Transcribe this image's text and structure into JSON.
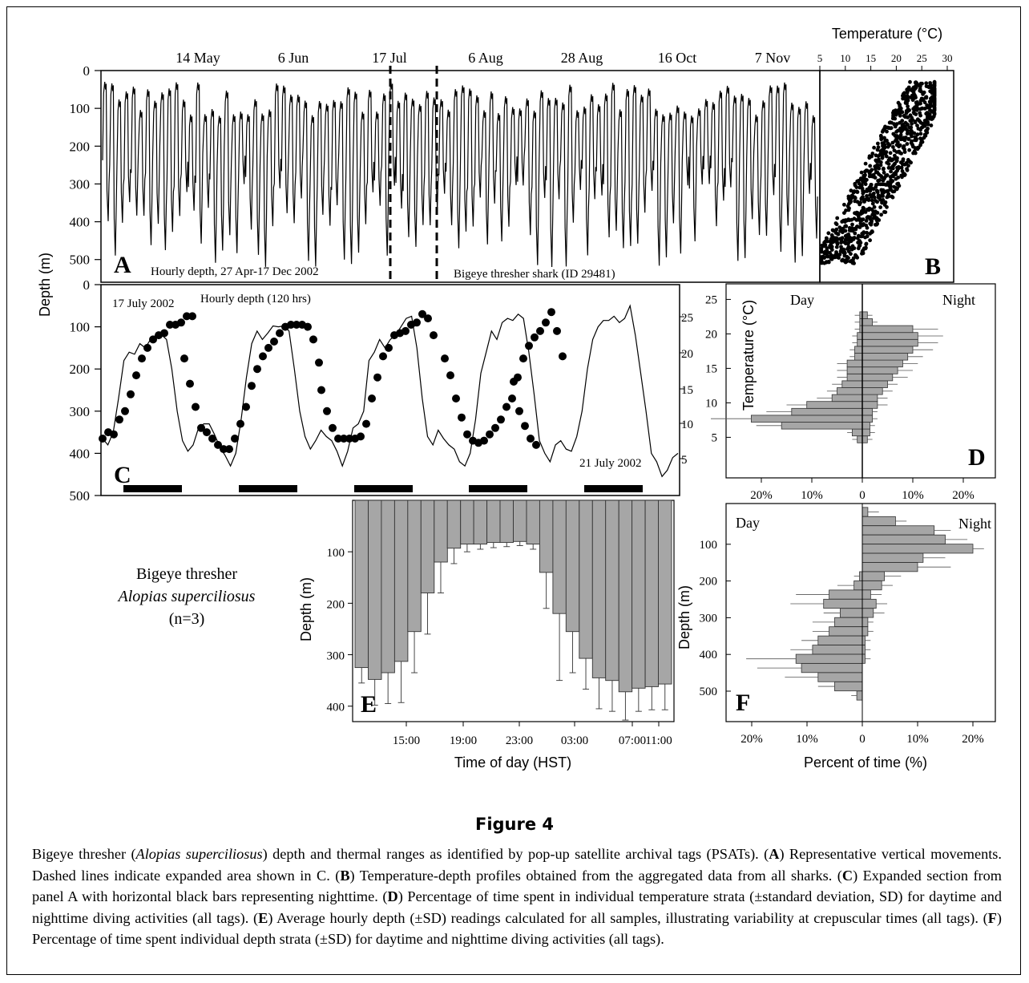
{
  "figure": {
    "title": "Figure 4",
    "caption_html": "Bigeye thresher (<i>Alopias superciliosus</i>) depth and thermal ranges as identified by pop-up satellite archival tags (PSATs). (<b>A</b>) Representative vertical movements. Dashed lines indicate expanded area shown in C. (<b>B</b>) Temperature-depth profiles obtained from the aggregated data from all sharks. (<b>C</b>) Expanded section from panel A with horizontal black bars representing nighttime. (<b>D</b>) Percentage of time spent in individual temperature strata (±standard deviation, SD) for daytime and nighttime diving activities (all tags). (<b>E</b>) Average hourly depth (±SD) readings calculated for all samples, illustrating variability at crepuscular times (all tags). (<b>F</b>) Percentage of time spent individual depth strata (±SD) for daytime and nighttime diving activities (all tags).",
    "species_label": {
      "common": "Bigeye thresher",
      "scientific": "Alopias superciliosus",
      "n": "(n=3)"
    },
    "shared_ylabel": "Depth (m)"
  },
  "chart_data": [
    {
      "panel": "A",
      "type": "line",
      "x_tick_labels": [
        "14 May",
        "6 Jun",
        "17 Jul",
        "6 Aug",
        "28 Aug",
        "16 Oct",
        "7 Nov"
      ],
      "y_ticks": [
        0,
        100,
        200,
        300,
        400,
        500
      ],
      "ylim": [
        0,
        560
      ],
      "y_inverted": true,
      "annotations": [
        "Hourly depth, 27 Apr-17 Dec 2002",
        "Bigeye thresher shark (ID 29481)"
      ],
      "dashed_markers": [
        "17 Jul",
        "21 Jul"
      ],
      "series": [
        {
          "pattern": "diel vertical migration",
          "night_depth_range": [
            30,
            120
          ],
          "day_depth_range": [
            300,
            520
          ],
          "cycles": 100
        }
      ]
    },
    {
      "panel": "B",
      "type": "scatter",
      "title": "Temperature (°C)",
      "xlim": [
        5,
        30
      ],
      "x_ticks": [
        5,
        10,
        15,
        20,
        25,
        30
      ],
      "ylim": [
        0,
        560
      ],
      "y_inverted": true,
      "trend": {
        "shallow": {
          "temperature": [
            22,
            27
          ],
          "depth": [
            30,
            150
          ]
        },
        "deep": {
          "temperature": [
            7,
            12
          ],
          "depth": [
            350,
            510
          ]
        }
      },
      "n_points": 900
    },
    {
      "panel": "C",
      "type": "line",
      "y_ticks": [
        0,
        100,
        200,
        300,
        400,
        500
      ],
      "ylim": [
        0,
        500
      ],
      "y_inverted": true,
      "right_ticks": [
        5,
        10,
        15,
        20,
        25
      ],
      "annotations": [
        "17 July 2002",
        "Hourly depth (120 hrs)",
        "21 July 2002"
      ],
      "depth_line": [
        365,
        380,
        350,
        270,
        180,
        160,
        165,
        140,
        150,
        130,
        120,
        118,
        130,
        200,
        300,
        370,
        395,
        380,
        340,
        330,
        330,
        355,
        385,
        405,
        430,
        400,
        320,
        220,
        140,
        110,
        130,
        115,
        98,
        100,
        98,
        110,
        200,
        300,
        360,
        390,
        370,
        345,
        360,
        370,
        395,
        430,
        395,
        340,
        330,
        300,
        180,
        160,
        130,
        150,
        130,
        120,
        100,
        80,
        75,
        150,
        270,
        360,
        380,
        345,
        365,
        380,
        390,
        420,
        430,
        400,
        320,
        210,
        160,
        110,
        130,
        90,
        80,
        85,
        70,
        80,
        160,
        260,
        370,
        400,
        420,
        380,
        370,
        390,
        395,
        360,
        300,
        200,
        130,
        100,
        85,
        85,
        75,
        90,
        80,
        50,
        120,
        210,
        300,
        400,
        420,
        455,
        440,
        410,
        400
      ],
      "temperature_dots": {
        "cycle1": [
          365,
          350,
          355,
          320,
          300,
          260,
          215,
          175,
          150,
          130,
          120,
          115,
          95,
          95,
          90,
          75,
          75
        ],
        "cycle2": [
          175,
          235,
          290,
          340,
          350,
          365,
          380,
          390,
          390,
          365,
          330,
          290,
          240,
          200,
          170,
          150,
          135,
          115,
          100,
          95,
          95,
          95,
          100,
          130,
          185
        ],
        "cycle3": [
          250,
          300,
          340,
          365,
          365,
          365,
          365,
          360,
          330,
          270,
          220,
          170,
          150,
          120,
          115,
          110,
          95,
          90,
          70,
          80,
          120
        ],
        "cycle4": [
          175,
          215,
          270,
          315,
          355,
          370,
          375,
          370,
          355,
          340,
          320,
          290,
          270,
          220,
          175,
          145,
          125,
          110,
          90,
          65,
          110,
          170
        ],
        "cycle5": [
          230,
          300,
          335,
          365,
          380
        ]
      },
      "night_bars": 5
    },
    {
      "panel": "D",
      "type": "bar",
      "orientation": "horizontal",
      "ylabel": "Temperature (°C)",
      "y_ticks": [
        5,
        10,
        15,
        20,
        25
      ],
      "x_tick_labels": [
        "20%",
        "10%",
        "0",
        "10%",
        "20%"
      ],
      "labels": [
        "Day",
        "Night"
      ],
      "temperature_bins": [
        5,
        6,
        7,
        8,
        9,
        10,
        11,
        12,
        13,
        14,
        15,
        16,
        17,
        18,
        19,
        20,
        21,
        22,
        23
      ],
      "day_percent": [
        1,
        2,
        16,
        22,
        14,
        11,
        6,
        5,
        4,
        3,
        3,
        3,
        1.5,
        1.5,
        1,
        1,
        0.5,
        0.5,
        0.5
      ],
      "night_percent": [
        1,
        1.5,
        1.5,
        2,
        2,
        3,
        3,
        4,
        5,
        6,
        7,
        8,
        9,
        10,
        11,
        11,
        10,
        2,
        1
      ],
      "day_sd": [
        1,
        1,
        5,
        8,
        5,
        4,
        3,
        2,
        2,
        2,
        2,
        2,
        1,
        1,
        1,
        1,
        1,
        1,
        1
      ],
      "night_sd": [
        1,
        1,
        1,
        1,
        1,
        2,
        2,
        2,
        2,
        3,
        3,
        3,
        3,
        4,
        4,
        5,
        5,
        1,
        1
      ]
    },
    {
      "panel": "E",
      "type": "bar",
      "xlabel": "Time of day (HST)",
      "ylabel": "Depth (m)",
      "x_tick_labels": [
        "15:00",
        "19:00",
        "23:00",
        "03:00",
        "07:00",
        "11:00"
      ],
      "y_ticks": [
        100,
        200,
        300,
        400
      ],
      "ylim": [
        0,
        430
      ],
      "y_inverted": true,
      "hours": [
        "12:00",
        "13:00",
        "14:00",
        "15:00",
        "16:00",
        "17:00",
        "18:00",
        "19:00",
        "20:00",
        "21:00",
        "22:00",
        "23:00",
        "00:00",
        "01:00",
        "02:00",
        "03:00",
        "04:00",
        "05:00",
        "06:00",
        "07:00",
        "08:00",
        "09:00",
        "10:00",
        "11:00"
      ],
      "values": [
        325,
        348,
        335,
        313,
        255,
        180,
        120,
        93,
        85,
        85,
        82,
        82,
        80,
        85,
        140,
        220,
        255,
        307,
        345,
        350,
        372,
        365,
        362,
        357
      ],
      "sd": [
        30,
        50,
        60,
        80,
        80,
        80,
        60,
        30,
        15,
        10,
        10,
        8,
        8,
        10,
        70,
        130,
        80,
        60,
        60,
        60,
        55,
        45,
        45,
        50
      ]
    },
    {
      "panel": "F",
      "type": "bar",
      "orientation": "horizontal",
      "xlabel": "Percent of time (%)",
      "ylabel": "Depth (m)",
      "y_ticks": [
        100,
        200,
        300,
        400,
        500
      ],
      "x_tick_labels": [
        "20%",
        "10%",
        "0",
        "10%",
        "20%"
      ],
      "labels": [
        "Day",
        "Night"
      ],
      "depth_bins": [
        12,
        37,
        62,
        87,
        112,
        137,
        162,
        187,
        212,
        237,
        262,
        287,
        312,
        337,
        362,
        387,
        412,
        437,
        462,
        487,
        512
      ],
      "day_percent": [
        0,
        0,
        0,
        0,
        0,
        0,
        0,
        0.5,
        1.5,
        6,
        7,
        4,
        5,
        6,
        8,
        9,
        12,
        11,
        8,
        5,
        1
      ],
      "night_percent": [
        1,
        6,
        13,
        15,
        20,
        11,
        10,
        4,
        3.5,
        1.5,
        2.5,
        2,
        1,
        1,
        0.5,
        0.5,
        0.5,
        0,
        0,
        0,
        0
      ],
      "day_sd": [
        0,
        0,
        0,
        0,
        0,
        0,
        0,
        1,
        3,
        6,
        6,
        3,
        4,
        3,
        3,
        4,
        9,
        8,
        6,
        3,
        1
      ],
      "night_sd": [
        2,
        2,
        3,
        4,
        2,
        4,
        6,
        3,
        2,
        2,
        2,
        2,
        1,
        1,
        1,
        1,
        1,
        0,
        0,
        0,
        0
      ]
    }
  ]
}
